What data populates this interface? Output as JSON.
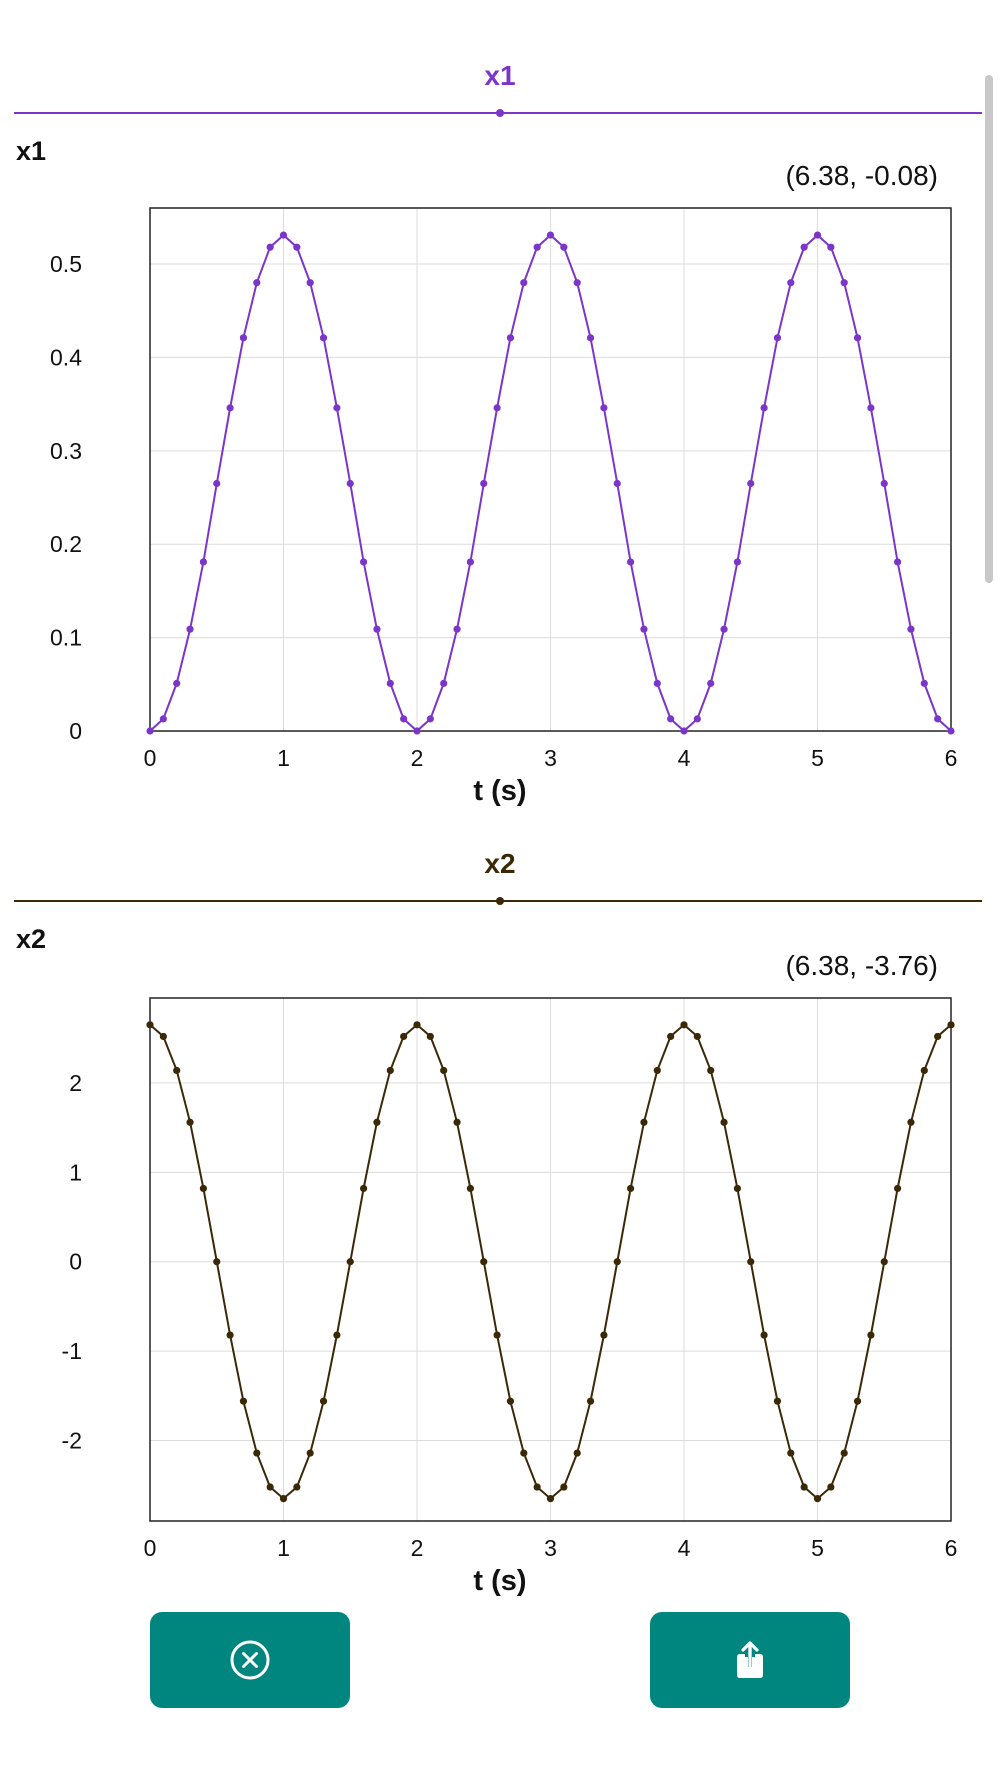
{
  "charts_meta": {
    "colors": {
      "x1": "#7b35c8",
      "x2": "#3a2806"
    }
  },
  "panels": [
    {
      "title": "x1",
      "ylabel": "x1",
      "coord": "(6.38, -0.08)"
    },
    {
      "title": "x2",
      "ylabel": "x2",
      "coord": "(6.38, -3.76)"
    }
  ],
  "buttons": {
    "cancel_icon": "close-circle-icon",
    "share_icon": "share-icon"
  },
  "chart_data": [
    {
      "type": "line",
      "title": "x1",
      "xlabel": "t (s)",
      "ylabel": "x1",
      "xlim": [
        0,
        6
      ],
      "ylim": [
        0,
        0.56
      ],
      "xticks": [
        "0",
        "1",
        "2",
        "3",
        "4",
        "5",
        "6"
      ],
      "yticks": [
        "0",
        "0.1",
        "0.2",
        "0.3",
        "0.4",
        "0.5"
      ],
      "grid": true,
      "color": "#7b35c8",
      "series": [
        {
          "x": [
            0,
            0.1,
            0.2,
            0.3,
            0.4,
            0.5,
            0.6,
            0.7,
            0.8,
            0.9,
            1.0,
            1.1,
            1.2,
            1.3,
            1.4,
            1.5,
            1.6,
            1.7,
            1.8,
            1.9,
            2.0,
            2.1,
            2.2,
            2.3,
            2.4,
            2.5,
            2.6,
            2.7,
            2.8,
            2.9,
            3.0,
            3.1,
            3.2,
            3.3,
            3.4,
            3.5,
            3.6,
            3.7,
            3.8,
            3.9,
            4.0,
            4.1,
            4.2,
            4.3,
            4.4,
            4.5,
            4.6,
            4.7,
            4.8,
            4.9,
            5.0,
            5.1,
            5.2,
            5.3,
            5.4,
            5.5,
            5.6,
            5.7,
            5.8,
            5.9,
            6.0
          ],
          "y": [
            0,
            0.013,
            0.051,
            0.109,
            0.181,
            0.265,
            0.346,
            0.421,
            0.48,
            0.518,
            0.531,
            0.518,
            0.48,
            0.421,
            0.346,
            0.265,
            0.181,
            0.109,
            0.051,
            0.013,
            0,
            0.013,
            0.051,
            0.109,
            0.181,
            0.265,
            0.346,
            0.421,
            0.48,
            0.518,
            0.531,
            0.518,
            0.48,
            0.421,
            0.346,
            0.265,
            0.181,
            0.109,
            0.051,
            0.013,
            0,
            0.013,
            0.051,
            0.109,
            0.181,
            0.265,
            0.346,
            0.421,
            0.48,
            0.518,
            0.531,
            0.518,
            0.48,
            0.421,
            0.346,
            0.265,
            0.181,
            0.109,
            0.051,
            0.013,
            0
          ]
        }
      ]
    },
    {
      "type": "line",
      "title": "x2",
      "xlabel": "t (s)",
      "ylabel": "x2",
      "xlim": [
        0,
        6
      ],
      "ylim": [
        -2.9,
        2.95
      ],
      "xticks": [
        "0",
        "1",
        "2",
        "3",
        "4",
        "5",
        "6"
      ],
      "yticks": [
        "-2",
        "-1",
        "0",
        "1",
        "2"
      ],
      "grid": true,
      "color": "#3a2806",
      "series": [
        {
          "x": [
            0,
            0.1,
            0.2,
            0.3,
            0.4,
            0.5,
            0.6,
            0.7,
            0.8,
            0.9,
            1.0,
            1.1,
            1.2,
            1.3,
            1.4,
            1.5,
            1.6,
            1.7,
            1.8,
            1.9,
            2.0,
            2.1,
            2.2,
            2.3,
            2.4,
            2.5,
            2.6,
            2.7,
            2.8,
            2.9,
            3.0,
            3.1,
            3.2,
            3.3,
            3.4,
            3.5,
            3.6,
            3.7,
            3.8,
            3.9,
            4.0,
            4.1,
            4.2,
            4.3,
            4.4,
            4.5,
            4.6,
            4.7,
            4.8,
            4.9,
            5.0,
            5.1,
            5.2,
            5.3,
            5.4,
            5.5,
            5.6,
            5.7,
            5.8,
            5.9,
            6.0
          ],
          "y": [
            2.65,
            2.52,
            2.14,
            1.56,
            0.82,
            0,
            -0.82,
            -1.56,
            -2.14,
            -2.52,
            -2.65,
            -2.52,
            -2.14,
            -1.56,
            -0.82,
            0,
            0.82,
            1.56,
            2.14,
            2.52,
            2.65,
            2.52,
            2.14,
            1.56,
            0.82,
            0,
            -0.82,
            -1.56,
            -2.14,
            -2.52,
            -2.65,
            -2.52,
            -2.14,
            -1.56,
            -0.82,
            0,
            0.82,
            1.56,
            2.14,
            2.52,
            2.65,
            2.52,
            2.14,
            1.56,
            0.82,
            0,
            -0.82,
            -1.56,
            -2.14,
            -2.52,
            -2.65,
            -2.52,
            -2.14,
            -1.56,
            -0.82,
            0,
            0.82,
            1.56,
            2.14,
            2.52,
            2.65
          ]
        }
      ]
    }
  ]
}
